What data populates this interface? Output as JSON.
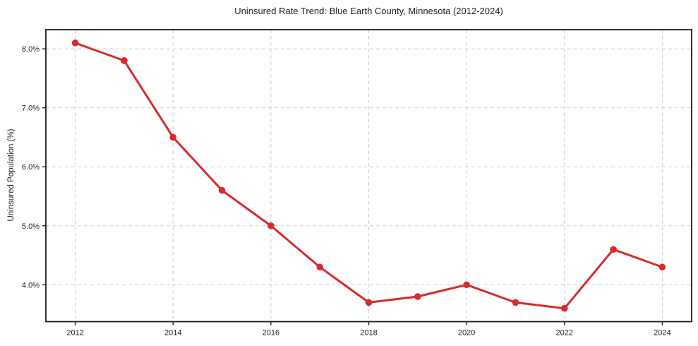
{
  "chart_data": {
    "type": "line",
    "title": "Uninsured Rate Trend: Blue Earth County, Minnesota (2012-2024)",
    "xlabel": "",
    "ylabel": "Uninsured Population (%)",
    "x": [
      2012,
      2013,
      2014,
      2015,
      2016,
      2017,
      2018,
      2019,
      2020,
      2021,
      2022,
      2023,
      2024
    ],
    "values": [
      8.1,
      7.8,
      6.5,
      5.6,
      5.0,
      4.3,
      3.7,
      3.8,
      4.0,
      3.7,
      3.6,
      4.6,
      4.3
    ],
    "xlim": [
      2011.4,
      2024.6
    ],
    "ylim": [
      3.375,
      8.325
    ],
    "x_ticks": [
      2012,
      2014,
      2016,
      2018,
      2020,
      2022,
      2024
    ],
    "x_tick_labels": [
      "2012",
      "2014",
      "2016",
      "2018",
      "2020",
      "2022",
      "2024"
    ],
    "y_ticks": [
      4.0,
      5.0,
      6.0,
      7.0,
      8.0
    ],
    "y_tick_labels": [
      "4.0%",
      "5.0%",
      "6.0%",
      "7.0%",
      "8.0%"
    ],
    "grid": true,
    "grid_style": "dashed",
    "legend_position": "none",
    "colors": {
      "line": "#d62b2b",
      "marker": "#d62b2b",
      "grid": "#cdcdcd",
      "axis_border": "#1a1a1a",
      "tick_text": "#1f1f1f",
      "background": "#ffffff"
    }
  }
}
